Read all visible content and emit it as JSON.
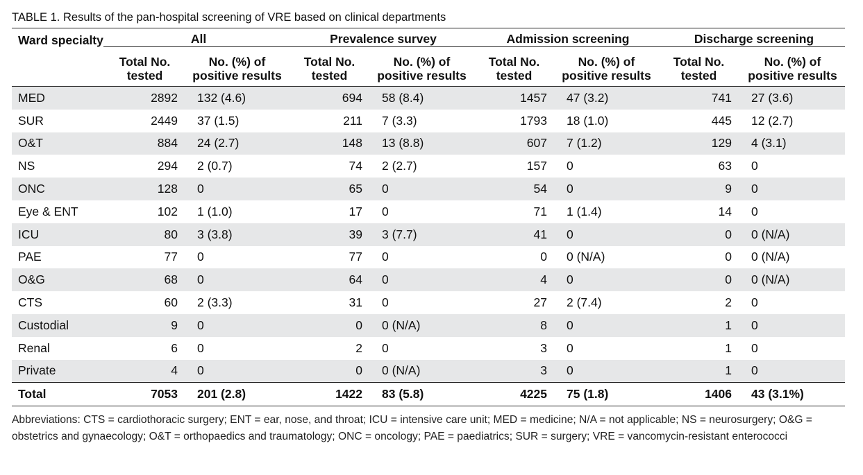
{
  "caption": "TABLE 1. Results of the pan-hospital screening of VRE based on clinical departments",
  "headers": {
    "ward": "Ward specialty",
    "groups": [
      "All",
      "Prevalence survey",
      "Admission screening",
      "Discharge screening"
    ],
    "sub_total": "Total No. tested",
    "sub_positive": "No. (%) of positive results"
  },
  "rows": [
    {
      "ward": "MED",
      "c": [
        "2892",
        "132 (4.6)",
        "694",
        "58 (8.4)",
        "1457",
        "47 (3.2)",
        "741",
        "27 (3.6)"
      ]
    },
    {
      "ward": "SUR",
      "c": [
        "2449",
        "37 (1.5)",
        "211",
        "7 (3.3)",
        "1793",
        "18 (1.0)",
        "445",
        "12 (2.7)"
      ]
    },
    {
      "ward": "O&T",
      "c": [
        "884",
        "24 (2.7)",
        "148",
        "13 (8.8)",
        "607",
        "7 (1.2)",
        "129",
        "4 (3.1)"
      ]
    },
    {
      "ward": "NS",
      "c": [
        "294",
        "2 (0.7)",
        "74",
        "2 (2.7)",
        "157",
        "0",
        "63",
        "0"
      ]
    },
    {
      "ward": "ONC",
      "c": [
        "128",
        "0",
        "65",
        "0",
        "54",
        "0",
        "9",
        "0"
      ]
    },
    {
      "ward": "Eye & ENT",
      "c": [
        "102",
        "1 (1.0)",
        "17",
        "0",
        "71",
        "1 (1.4)",
        "14",
        "0"
      ]
    },
    {
      "ward": "ICU",
      "c": [
        "80",
        "3 (3.8)",
        "39",
        "3 (7.7)",
        "41",
        "0",
        "0",
        "0 (N/A)"
      ]
    },
    {
      "ward": "PAE",
      "c": [
        "77",
        "0",
        "77",
        "0",
        "0",
        "0 (N/A)",
        "0",
        "0 (N/A)"
      ]
    },
    {
      "ward": "O&G",
      "c": [
        "68",
        "0",
        "64",
        "0",
        "4",
        "0",
        "0",
        "0 (N/A)"
      ]
    },
    {
      "ward": "CTS",
      "c": [
        "60",
        "2 (3.3)",
        "31",
        "0",
        "27",
        "2 (7.4)",
        "2",
        "0"
      ]
    },
    {
      "ward": "Custodial",
      "c": [
        "9",
        "0",
        "0",
        "0 (N/A)",
        "8",
        "0",
        "1",
        "0"
      ]
    },
    {
      "ward": "Renal",
      "c": [
        "6",
        "0",
        "2",
        "0",
        "3",
        "0",
        "1",
        "0"
      ]
    },
    {
      "ward": "Private",
      "c": [
        "4",
        "0",
        "0",
        "0 (N/A)",
        "3",
        "0",
        "1",
        "0"
      ]
    }
  ],
  "total": {
    "ward": "Total",
    "c": [
      "7053",
      "201 (2.8)",
      "1422",
      "83 (5.8)",
      "4225",
      "75 (1.8)",
      "1406",
      "43 (3.1%)"
    ]
  },
  "footnote": "Abbreviations: CTS = cardiothoracic surgery; ENT = ear, nose, and throat; ICU = intensive care unit; MED = medicine; N/A = not applicable; NS = neurosurgery; O&G = obstetrics and gynaecology; O&T = orthopaedics and traumatology; ONC = oncology; PAE = paediatrics; SUR = surgery; VRE = vancomycin-resistant enterococci"
}
